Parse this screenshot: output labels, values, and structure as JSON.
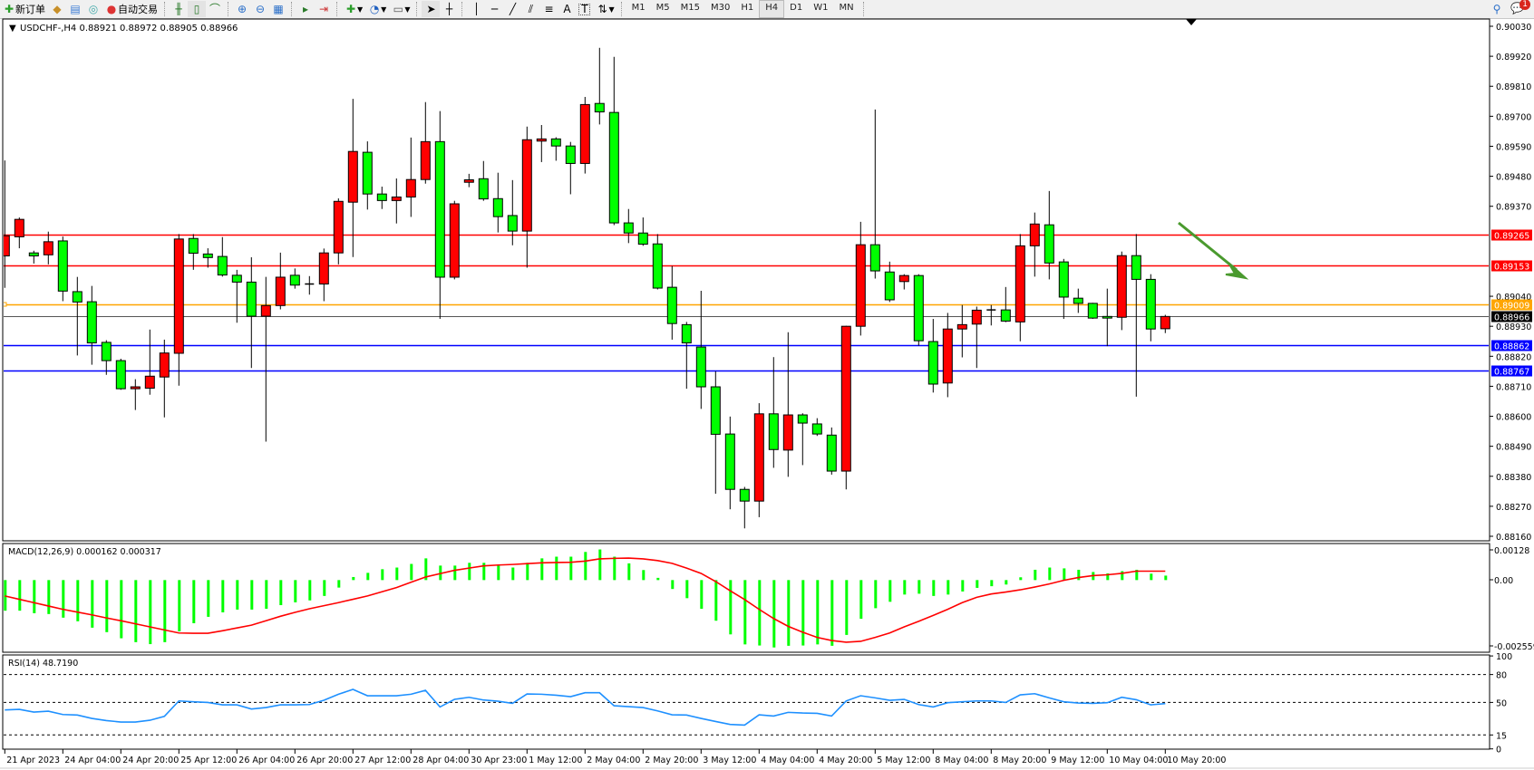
{
  "toolbar": {
    "new_order_label": "新订单",
    "auto_trading_label": "自动交易",
    "timeframes": [
      "M1",
      "M5",
      "M15",
      "M30",
      "H1",
      "H4",
      "D1",
      "W1",
      "MN"
    ],
    "active_timeframe": "H4",
    "notification_count": "1",
    "icons": [
      "new-order-icon",
      "history-icon",
      "market-watch-icon",
      "signals-icon",
      "auto-trading-icon",
      "bar-chart-icon",
      "candlestick-icon",
      "line-chart-icon",
      "zoom-in-icon",
      "zoom-out-icon",
      "tile-windows-icon",
      "chart-shift-icon",
      "autoscroll-icon",
      "indicators-icon",
      "periods-icon",
      "templates-icon",
      "cursor-icon",
      "crosshair-icon",
      "vertical-line-icon",
      "horizontal-line-icon",
      "trendline-icon",
      "equidistant-channel-icon",
      "fibonacci-icon",
      "text-icon",
      "text-label-icon",
      "arrows-icon",
      "search-icon",
      "notification-icon"
    ]
  },
  "main": {
    "legend": "USDCHF-,H4  0.88921 0.88972 0.88905 0.88966",
    "price_ticks": [
      "0.90030",
      "0.89920",
      "0.89810",
      "0.89700",
      "0.89590",
      "0.89480",
      "0.89370",
      "0.89040",
      "0.88930",
      "0.88820",
      "0.88710",
      "0.88600",
      "0.88490",
      "0.88380",
      "0.88270",
      "0.88160"
    ],
    "hlines": [
      {
        "price": 0.89265,
        "label": "0.89265",
        "color": "#ff0000"
      },
      {
        "price": 0.89153,
        "label": "0.89153",
        "color": "#ff0000"
      },
      {
        "price": 0.89009,
        "label": "0.89009",
        "color": "#ffa500"
      },
      {
        "price": 0.88966,
        "label": "0.88966",
        "color": "#000000"
      },
      {
        "price": 0.88862,
        "label": "0.88862",
        "color": "#0000ff"
      },
      {
        "price": 0.88767,
        "label": "0.88767",
        "color": "#0000ff"
      }
    ],
    "arrow_color": "#4a9a2e"
  },
  "macd_pane": {
    "label": "MACD(12,26,9) 0.000162 0.000317",
    "ticks": [
      "0.00128",
      "0.00",
      "-0.002559"
    ]
  },
  "rsi_pane": {
    "label": "RSI(14) 48.7190",
    "ticks": [
      "100",
      "80",
      "50",
      "15",
      "0"
    ]
  },
  "chart_data": {
    "type": "candlestick",
    "symbol": "USDCHF-",
    "timeframe": "H4",
    "ylim": [
      0.8816,
      0.9003
    ],
    "bull_color": "#ff0000",
    "bear_color": "#00ff00",
    "time_labels": [
      "21 Apr 2023",
      "24 Apr 04:00",
      "24 Apr 20:00",
      "25 Apr 12:00",
      "26 Apr 04:00",
      "26 Apr 20:00",
      "27 Apr 12:00",
      "28 Apr 04:00",
      "30 Apr 23:00",
      "1 May 12:00",
      "2 May 04:00",
      "2 May 20:00",
      "3 May 12:00",
      "4 May 04:00",
      "4 May 20:00",
      "5 May 12:00",
      "8 May 04:00",
      "8 May 20:00",
      "9 May 12:00",
      "10 May 04:00",
      "10 May 20:00"
    ],
    "open": [
      0.89188,
      0.89258,
      0.89199,
      0.89192,
      0.89243,
      0.89057,
      0.8902,
      0.88871,
      0.88804,
      0.88701,
      0.88703,
      0.88744,
      0.88831,
      0.89252,
      0.89195,
      0.89186,
      0.89117,
      0.89092,
      0.88967,
      0.89006,
      0.89117,
      0.89084,
      0.89085,
      0.89199,
      0.89385,
      0.89568,
      0.89415,
      0.89391,
      0.89404,
      0.89468,
      0.89607,
      0.8911,
      0.89458,
      0.89471,
      0.89398,
      0.89336,
      0.89279,
      0.89609,
      0.89617,
      0.89591,
      0.89527,
      0.89747,
      0.89714,
      0.89309,
      0.89272,
      0.89232,
      0.89073,
      0.88936,
      0.88854,
      0.88708,
      0.88535,
      0.88332,
      0.88289,
      0.88609,
      0.88476,
      0.88605,
      0.88572,
      0.88531,
      0.88399,
      0.8893,
      0.89229,
      0.89129,
      0.89094,
      0.89116,
      0.88874,
      0.88722,
      0.8892,
      0.88938,
      0.88989,
      0.8899,
      0.88946,
      0.89225,
      0.89302,
      0.89166,
      0.89033,
      0.89014,
      0.88966,
      0.88963,
      0.89189,
      0.89102,
      0.88921
    ],
    "high": [
      0.89538,
      0.89329,
      0.89207,
      0.89277,
      0.89259,
      0.89111,
      0.89078,
      0.88879,
      0.88811,
      0.88736,
      0.88918,
      0.88881,
      0.89268,
      0.89268,
      0.89216,
      0.89257,
      0.89137,
      0.89183,
      0.89111,
      0.892,
      0.89142,
      0.89114,
      0.89215,
      0.89399,
      0.89764,
      0.89608,
      0.89442,
      0.89472,
      0.89622,
      0.89752,
      0.89719,
      0.8939,
      0.89489,
      0.89536,
      0.89493,
      0.89466,
      0.89662,
      0.89668,
      0.89623,
      0.89606,
      0.89771,
      0.89951,
      0.89918,
      0.8936,
      0.89329,
      0.89268,
      0.89151,
      0.88946,
      0.8906,
      0.88765,
      0.88599,
      0.88341,
      0.88648,
      0.88817,
      0.88908,
      0.88611,
      0.88593,
      0.88559,
      0.88932,
      0.89313,
      0.89725,
      0.89167,
      0.89121,
      0.89121,
      0.88957,
      0.88979,
      0.89008,
      0.89002,
      0.89008,
      0.89074,
      0.89268,
      0.89347,
      0.89426,
      0.89177,
      0.89068,
      0.89016,
      0.89068,
      0.89204,
      0.89268,
      0.89121,
      0.88972
    ],
    "low": [
      0.89071,
      0.89216,
      0.8916,
      0.89157,
      0.89022,
      0.88823,
      0.88789,
      0.88752,
      0.88697,
      0.88623,
      0.88679,
      0.88596,
      0.88712,
      0.89137,
      0.89145,
      0.89112,
      0.88943,
      0.88777,
      0.88507,
      0.88992,
      0.89068,
      0.89046,
      0.89022,
      0.89157,
      0.89184,
      0.89358,
      0.8936,
      0.89307,
      0.89331,
      0.89453,
      0.88957,
      0.89102,
      0.8944,
      0.8939,
      0.89274,
      0.89227,
      0.89145,
      0.89532,
      0.89537,
      0.89414,
      0.8949,
      0.8967,
      0.89301,
      0.89235,
      0.89225,
      0.89065,
      0.88881,
      0.88701,
      0.88627,
      0.88316,
      0.88259,
      0.88189,
      0.8823,
      0.88411,
      0.88378,
      0.88421,
      0.88528,
      0.88386,
      0.88332,
      0.88896,
      0.89105,
      0.89019,
      0.89065,
      0.88859,
      0.88687,
      0.8867,
      0.88816,
      0.88777,
      0.88933,
      0.88945,
      0.88875,
      0.89112,
      0.89102,
      0.88957,
      0.88979,
      0.88957,
      0.88857,
      0.88916,
      0.88672,
      0.88875,
      0.88905
    ],
    "close": [
      0.89262,
      0.89322,
      0.89188,
      0.8924,
      0.89059,
      0.89019,
      0.88869,
      0.88804,
      0.88701,
      0.88708,
      0.88747,
      0.88832,
      0.8925,
      0.89198,
      0.89182,
      0.89118,
      0.89092,
      0.88967,
      0.89006,
      0.8911,
      0.89081,
      0.89085,
      0.89199,
      0.89388,
      0.89571,
      0.89415,
      0.89391,
      0.89404,
      0.89468,
      0.89607,
      0.8911,
      0.89379,
      0.89467,
      0.89397,
      0.89332,
      0.89279,
      0.89614,
      0.89617,
      0.89591,
      0.89527,
      0.89743,
      0.89716,
      0.89309,
      0.89272,
      0.89231,
      0.8907,
      0.8894,
      0.88869,
      0.88708,
      0.88534,
      0.88332,
      0.88289,
      0.88609,
      0.88478,
      0.88605,
      0.88575,
      0.88535,
      0.88399,
      0.8893,
      0.89229,
      0.89133,
      0.89027,
      0.89116,
      0.88877,
      0.88718,
      0.8892,
      0.88936,
      0.88989,
      0.8899,
      0.88949,
      0.89225,
      0.89305,
      0.89162,
      0.89037,
      0.89014,
      0.8896,
      0.8896,
      0.89189,
      0.89102,
      0.8892,
      0.88966
    ],
    "macd": {
      "ylim": [
        -0.002559,
        0.00128
      ],
      "main_color": "#00ff00",
      "signal_color": "#ff0000",
      "main": [
        -0.0011,
        -0.0011,
        -0.00119,
        -0.00122,
        -0.00135,
        -0.00148,
        -0.00171,
        -0.00187,
        -0.00209,
        -0.00223,
        -0.0023,
        -0.00223,
        -0.00184,
        -0.00155,
        -0.00132,
        -0.00116,
        -0.00106,
        -0.00106,
        -0.00103,
        -0.0009,
        -0.0008,
        -0.00073,
        -0.00057,
        -0.00027,
        0.00011,
        0.00026,
        0.00039,
        0.00045,
        0.00058,
        0.00078,
        0.00052,
        0.00052,
        0.00062,
        0.00062,
        0.00052,
        0.00045,
        0.00062,
        0.00078,
        0.00084,
        0.00084,
        0.00101,
        0.0011,
        0.00084,
        0.0006,
        0.00036,
        8e-05,
        -0.00032,
        -0.00065,
        -0.00103,
        -0.00146,
        -0.00195,
        -0.00231,
        -0.00235,
        -0.00242,
        -0.00236,
        -0.00235,
        -0.00231,
        -0.00236,
        -0.00197,
        -0.00139,
        -0.00101,
        -0.00078,
        -0.00052,
        -0.00049,
        -0.00057,
        -0.00052,
        -0.00041,
        -0.00028,
        -0.00022,
        -0.00016,
        0.0001,
        0.00037,
        0.00045,
        0.00042,
        0.00037,
        0.00029,
        0.00024,
        0.00032,
        0.00037,
        0.00023,
        0.00016
      ],
      "signal": [
        -0.00057,
        -0.00069,
        -0.00081,
        -0.00093,
        -0.00105,
        -0.00115,
        -0.00125,
        -0.00136,
        -0.00146,
        -0.00157,
        -0.00168,
        -0.00179,
        -0.0019,
        -0.00191,
        -0.00191,
        -0.00182,
        -0.00172,
        -0.00162,
        -0.00146,
        -0.0013,
        -0.00116,
        -0.00103,
        -0.00092,
        -0.00081,
        -0.00069,
        -0.00057,
        -0.00042,
        -0.00027,
        -8e-05,
        0.00011,
        0.00023,
        0.00035,
        0.00043,
        0.00051,
        0.00054,
        0.00056,
        0.00059,
        0.00062,
        0.00063,
        0.00064,
        0.00068,
        0.00076,
        0.00078,
        0.00079,
        0.00076,
        0.0007,
        0.0006,
        0.00043,
        0.00024,
        -5e-05,
        -0.00038,
        -0.0007,
        -0.00105,
        -0.00138,
        -0.00166,
        -0.00187,
        -0.00206,
        -0.00217,
        -0.00223,
        -0.0022,
        -0.00206,
        -0.0019,
        -0.00168,
        -0.00148,
        -0.00127,
        -0.00105,
        -0.00081,
        -0.00062,
        -0.0005,
        -0.00043,
        -0.00035,
        -0.00025,
        -0.00014,
        -1e-05,
        9e-05,
        0.00016,
        0.00019,
        0.00024,
        0.00032,
        0.00032,
        0.00032
      ]
    },
    "rsi": {
      "ylim": [
        0,
        100
      ],
      "levels": [
        80,
        50,
        15
      ],
      "color": "#1e90ff",
      "values": [
        41.9,
        42.5,
        39.6,
        40.6,
        37.0,
        36.4,
        32.8,
        30.5,
        28.9,
        28.9,
        30.8,
        35.0,
        51.6,
        50.7,
        50.0,
        47.4,
        47.4,
        42.9,
        44.5,
        47.4,
        47.4,
        47.7,
        52.3,
        58.8,
        64.0,
        57.2,
        57.2,
        57.2,
        58.8,
        63.0,
        45.1,
        53.3,
        55.5,
        52.6,
        51.3,
        49.0,
        59.1,
        58.8,
        57.8,
        56.2,
        60.4,
        60.4,
        46.4,
        45.5,
        44.5,
        40.9,
        36.7,
        36.4,
        32.8,
        29.5,
        26.3,
        25.6,
        36.7,
        35.4,
        39.3,
        38.6,
        38.3,
        35.4,
        51.6,
        57.2,
        54.9,
        52.3,
        53.3,
        47.7,
        45.1,
        49.7,
        50.7,
        51.6,
        51.6,
        50.0,
        58.1,
        59.4,
        54.9,
        50.7,
        49.4,
        49.0,
        49.7,
        55.5,
        52.9,
        47.4,
        48.7
      ]
    }
  }
}
